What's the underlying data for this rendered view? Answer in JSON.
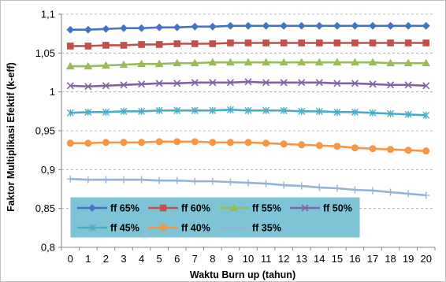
{
  "chart_data": {
    "type": "line",
    "xlabel": "Waktu Burn up (tahun)",
    "ylabel": "Faktor Multiplikasi Efektif (k-eff)",
    "x": [
      0,
      1,
      2,
      3,
      4,
      5,
      6,
      7,
      8,
      9,
      10,
      11,
      12,
      13,
      14,
      15,
      16,
      17,
      18,
      19,
      20
    ],
    "x_tick_labels": [
      "0",
      "1",
      "2",
      "3",
      "4",
      "5",
      "6",
      "7",
      "8",
      "9",
      "10",
      "11",
      "12",
      "13",
      "14",
      "15",
      "16",
      "17",
      "18",
      "19",
      "20"
    ],
    "ylim": [
      0.8,
      1.1
    ],
    "y_ticks": [
      0.8,
      0.85,
      0.9,
      0.95,
      1.0,
      1.05,
      1.1
    ],
    "y_tick_labels": [
      "0,8",
      "0,85",
      "0,9",
      "0,95",
      "1",
      "1,05",
      "1,1"
    ],
    "grid": true,
    "legend_position": "inside-bottom-left",
    "series": [
      {
        "name": "ff 65%",
        "color": "#4472c4",
        "marker": "diamond",
        "values": [
          1.08,
          1.08,
          1.081,
          1.082,
          1.082,
          1.083,
          1.083,
          1.084,
          1.084,
          1.085,
          1.085,
          1.085,
          1.085,
          1.085,
          1.085,
          1.085,
          1.085,
          1.085,
          1.085,
          1.085,
          1.085
        ]
      },
      {
        "name": "ff 60%",
        "color": "#c0504d",
        "marker": "square",
        "values": [
          1.059,
          1.059,
          1.06,
          1.06,
          1.061,
          1.061,
          1.062,
          1.062,
          1.062,
          1.063,
          1.063,
          1.063,
          1.063,
          1.063,
          1.063,
          1.063,
          1.063,
          1.063,
          1.063,
          1.063,
          1.063
        ]
      },
      {
        "name": "ff 55%",
        "color": "#9bbb59",
        "marker": "triangle",
        "values": [
          1.033,
          1.033,
          1.034,
          1.035,
          1.036,
          1.036,
          1.037,
          1.037,
          1.038,
          1.038,
          1.038,
          1.038,
          1.038,
          1.038,
          1.038,
          1.038,
          1.038,
          1.038,
          1.037,
          1.037,
          1.037
        ]
      },
      {
        "name": "ff 50%",
        "color": "#8064a2",
        "marker": "x-star",
        "values": [
          1.008,
          1.007,
          1.008,
          1.009,
          1.01,
          1.011,
          1.011,
          1.012,
          1.012,
          1.012,
          1.013,
          1.012,
          1.012,
          1.012,
          1.012,
          1.011,
          1.011,
          1.01,
          1.009,
          1.009,
          1.008
        ]
      },
      {
        "name": "ff 45%",
        "color": "#4bacc6",
        "marker": "asterisk",
        "values": [
          0.973,
          0.974,
          0.974,
          0.975,
          0.975,
          0.976,
          0.976,
          0.976,
          0.976,
          0.977,
          0.976,
          0.976,
          0.976,
          0.975,
          0.975,
          0.974,
          0.974,
          0.973,
          0.972,
          0.971,
          0.97
        ]
      },
      {
        "name": "ff 40%",
        "color": "#f79646",
        "marker": "circle",
        "values": [
          0.934,
          0.934,
          0.935,
          0.935,
          0.935,
          0.936,
          0.936,
          0.936,
          0.935,
          0.935,
          0.935,
          0.934,
          0.933,
          0.932,
          0.931,
          0.93,
          0.928,
          0.927,
          0.926,
          0.925,
          0.924
        ]
      },
      {
        "name": "ff 35%",
        "color": "#95b3d7",
        "marker": "plus",
        "values": [
          0.888,
          0.887,
          0.887,
          0.887,
          0.887,
          0.886,
          0.886,
          0.885,
          0.885,
          0.884,
          0.883,
          0.882,
          0.88,
          0.879,
          0.877,
          0.876,
          0.874,
          0.873,
          0.871,
          0.869,
          0.867
        ]
      }
    ]
  }
}
